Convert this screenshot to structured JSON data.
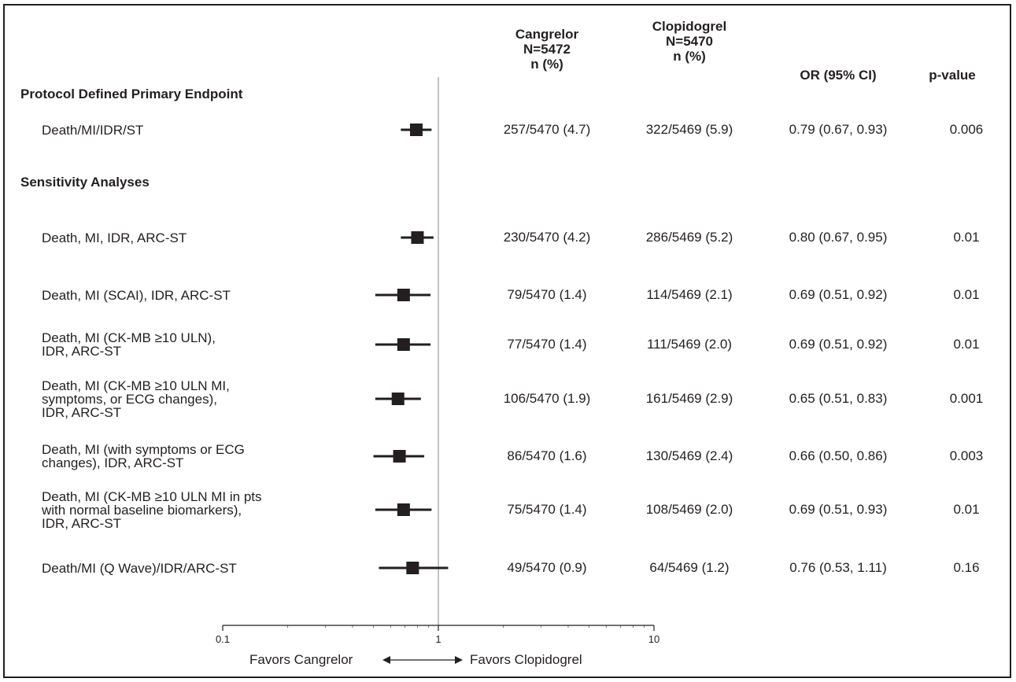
{
  "columns": {
    "cangrelor": "Cangrelor\nN=5472\nn (%)",
    "clopidogrel": "Clopidogrel\nN=5470\nn (%)",
    "or": "OR (95% CI)",
    "p": "p-value"
  },
  "sections": {
    "primary": "Protocol Defined Primary Endpoint",
    "sensitivity": "Sensitivity Analyses"
  },
  "axis": {
    "ticks": [
      "0.1",
      "1",
      "10"
    ],
    "favors_left": "Favors Cangrelor",
    "favors_right": "Favors Clopidogrel"
  },
  "chart_data": {
    "type": "forest",
    "scale": "log",
    "xlim": [
      0.1,
      10
    ],
    "reference_line": 1,
    "rows": [
      {
        "label": "Death/MI/IDR/ST",
        "cangrelor": "257/5470 (4.7)",
        "clopidogrel": "322/5469 (5.9)",
        "or_text": "0.79 (0.67, 0.93)",
        "p": "0.006",
        "or": 0.79,
        "lo": 0.67,
        "hi": 0.93
      },
      {
        "label": "Death, MI, IDR, ARC-ST",
        "cangrelor": "230/5470 (4.2)",
        "clopidogrel": "286/5469 (5.2)",
        "or_text": "0.80 (0.67, 0.95)",
        "p": "0.01",
        "or": 0.8,
        "lo": 0.67,
        "hi": 0.95
      },
      {
        "label": "Death, MI (SCAI), IDR, ARC-ST",
        "cangrelor": "79/5470 (1.4)",
        "clopidogrel": "114/5469 (2.1)",
        "or_text": "0.69 (0.51, 0.92)",
        "p": "0.01",
        "or": 0.69,
        "lo": 0.51,
        "hi": 0.92
      },
      {
        "label": "Death, MI (CK-MB ≥10 ULN),\nIDR, ARC-ST",
        "cangrelor": "77/5470 (1.4)",
        "clopidogrel": "111/5469 (2.0)",
        "or_text": "0.69 (0.51, 0.92)",
        "p": "0.01",
        "or": 0.69,
        "lo": 0.51,
        "hi": 0.92
      },
      {
        "label": "Death, MI (CK-MB ≥10 ULN MI,\nsymptoms, or ECG changes),\nIDR, ARC-ST",
        "cangrelor": "106/5470 (1.9)",
        "clopidogrel": "161/5469 (2.9)",
        "or_text": "0.65 (0.51, 0.83)",
        "p": "0.001",
        "or": 0.65,
        "lo": 0.51,
        "hi": 0.83
      },
      {
        "label": "Death, MI (with symptoms or ECG\nchanges), IDR, ARC-ST",
        "cangrelor": "86/5470 (1.6)",
        "clopidogrel": "130/5469 (2.4)",
        "or_text": "0.66 (0.50, 0.86)",
        "p": "0.003",
        "or": 0.66,
        "lo": 0.5,
        "hi": 0.86
      },
      {
        "label": "Death, MI (CK-MB ≥10 ULN MI in pts\nwith normal baseline biomarkers),\nIDR, ARC-ST",
        "cangrelor": "75/5470 (1.4)",
        "clopidogrel": "108/5469 (2.0)",
        "or_text": "0.69 (0.51, 0.93)",
        "p": "0.01",
        "or": 0.69,
        "lo": 0.51,
        "hi": 0.93
      },
      {
        "label": "Death/MI (Q Wave)/IDR/ARC-ST",
        "cangrelor": "49/5470 (0.9)",
        "clopidogrel": "64/5469 (1.2)",
        "or_text": "0.76 (0.53, 1.11)",
        "p": "0.16",
        "or": 0.76,
        "lo": 0.53,
        "hi": 1.11
      }
    ]
  }
}
